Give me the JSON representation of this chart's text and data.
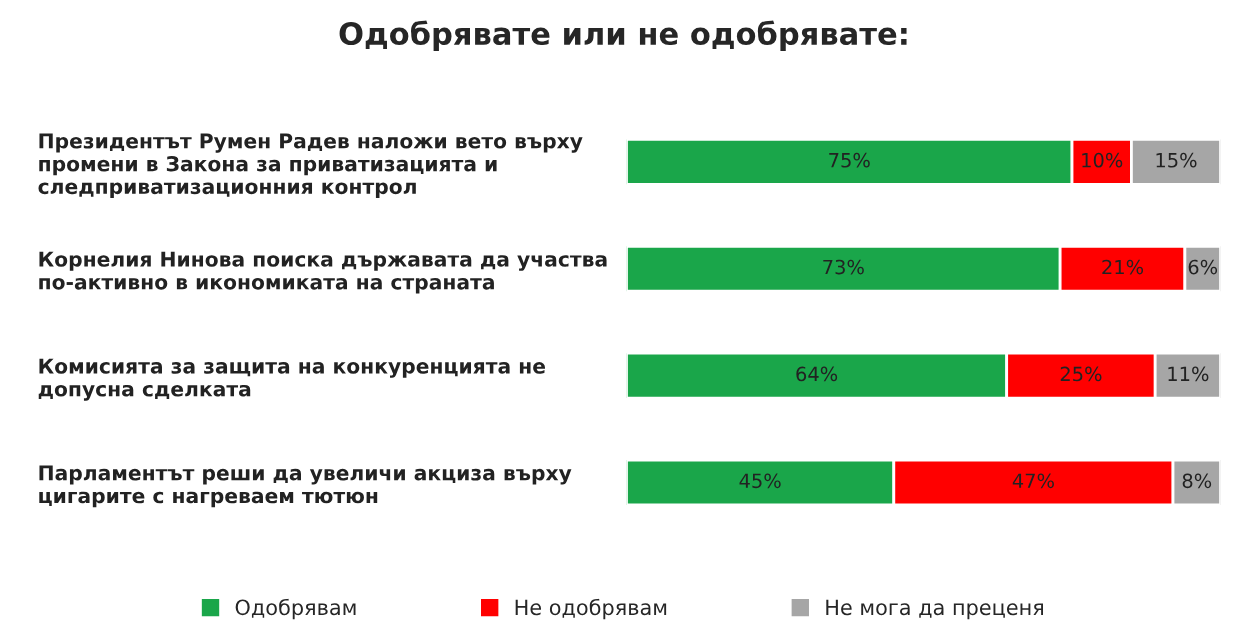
{
  "chart_data": {
    "type": "bar",
    "orientation": "horizontal",
    "stacked": true,
    "title": "Одобрявате или не одобрявате:",
    "categories": [
      "Президентът Румен Радев наложи вето върху\nпромени в Закона за приватизацията и\nследприватизационния контрол",
      "Корнелия Нинова поиска държавата да участва\nпо-активно в икономиката на страната",
      "Комисията за защита на конкуренцията не\nдопусна сделката",
      "Парламентът реши да увеличи акциза върху\nцигарите с нагреваем тютюн"
    ],
    "series": [
      {
        "name": "Одобрявам",
        "color": "#1aa64a",
        "values": [
          75,
          73,
          64,
          45
        ],
        "value_labels": [
          "75%",
          "73%",
          "64%",
          "45%"
        ]
      },
      {
        "name": "Не одобрявам",
        "color": "#ff0000",
        "values": [
          10,
          21,
          25,
          47
        ],
        "value_labels": [
          "10%",
          "21%",
          "25%",
          "47%"
        ]
      },
      {
        "name": "Не мога да преценя",
        "color": "#a6a6a6",
        "values": [
          15,
          6,
          11,
          8
        ],
        "value_labels": [
          "15%",
          "6%",
          "11%",
          "8%"
        ]
      }
    ],
    "legend": "bottom"
  }
}
